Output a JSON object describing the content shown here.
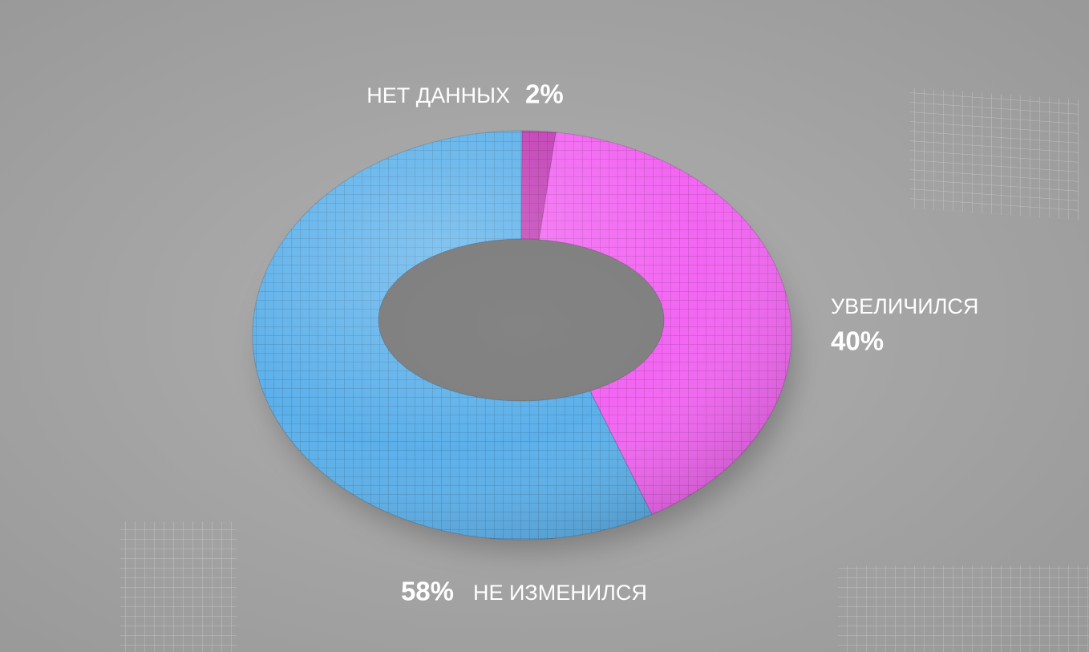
{
  "chart_data": {
    "type": "pie",
    "categories": [
      "НЕТ ДАННЫХ",
      "УВЕЛИЧИЛСЯ",
      "НЕ ИЗМЕНИЛСЯ"
    ],
    "values": [
      2,
      40,
      58
    ],
    "value_labels": [
      "2%",
      "40%",
      "58%"
    ],
    "colors": [
      "#c23fb6",
      "#f266f2",
      "#5cb0ea"
    ]
  }
}
